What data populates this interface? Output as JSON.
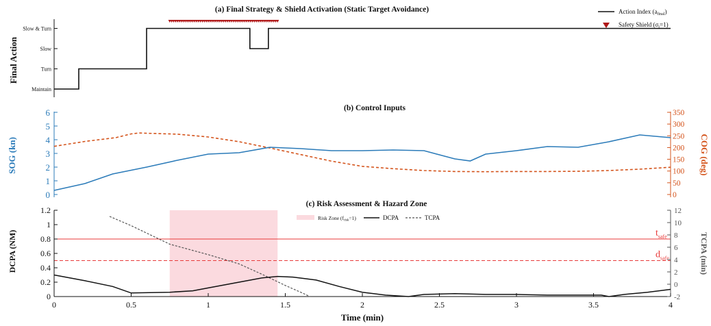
{
  "colors": {
    "black": "#111111",
    "sog": "#2b7bb9",
    "cog": "#d4541c",
    "shield": "#b01818",
    "risk_zone": "#fbdadf",
    "threshold": "#e83a3a",
    "tcpa": "#555555",
    "axis_gray": "#555555"
  },
  "chart_data": [
    {
      "id": "panel_a",
      "type": "line",
      "step": true,
      "title": "(a)  Final Strategy & Shield Activation (Static Target Avoidance)",
      "ylabel": "Final Action",
      "xlim": [
        0,
        4
      ],
      "ylim": [
        0.9,
        4.05
      ],
      "yticks": [
        1,
        2,
        3,
        4
      ],
      "ytick_labels": [
        "Maintain",
        "Turn",
        "Slow",
        "Slow & Turn"
      ],
      "series": [
        {
          "name": "Action Index (a_final)",
          "x": [
            0,
            0.16,
            0.16,
            0.6,
            0.6,
            1.27,
            1.27,
            1.39,
            1.39,
            4
          ],
          "y": [
            1,
            1,
            2,
            2,
            4,
            4,
            3,
            3,
            4,
            4
          ]
        },
        {
          "name": "Safety Shield (σ_t=1)",
          "marker": "triangle-down",
          "x_range": [
            0.75,
            1.45
          ],
          "y": 4.5
        }
      ],
      "legend": {
        "position": "top-right",
        "entries": [
          {
            "main": "Action Index (a",
            "sub": "final",
            "tail": ")"
          },
          {
            "main": "Safety Shield (σ",
            "sub": "t",
            "tail": "=1)"
          }
        ]
      }
    },
    {
      "id": "panel_b",
      "type": "line",
      "title": "(b)  Control Inputs",
      "xlim": [
        0,
        4
      ],
      "ylabel_left": "SOG (kn)",
      "ylabel_right": "COG (deg)",
      "ylim_left": [
        0,
        6
      ],
      "ylim_right": [
        0,
        350
      ],
      "yticks_left": [
        0,
        1,
        2,
        3,
        4,
        5,
        6
      ],
      "yticks_right": [
        0,
        50,
        100,
        150,
        200,
        250,
        300,
        350
      ],
      "series": [
        {
          "name": "SOG",
          "axis": "left",
          "x": [
            0,
            0.2,
            0.38,
            0.6,
            0.8,
            1.0,
            1.2,
            1.4,
            1.6,
            1.8,
            2.0,
            2.2,
            2.4,
            2.6,
            2.7,
            2.8,
            3.0,
            3.2,
            3.4,
            3.6,
            3.8,
            4.0
          ],
          "y": [
            0.3,
            0.8,
            1.5,
            2.0,
            2.5,
            2.95,
            3.05,
            3.45,
            3.35,
            3.2,
            3.2,
            3.25,
            3.2,
            2.6,
            2.45,
            2.95,
            3.2,
            3.5,
            3.45,
            3.85,
            4.35,
            4.15
          ]
        },
        {
          "name": "COG",
          "axis": "right",
          "style": "dashed",
          "x": [
            0,
            0.2,
            0.4,
            0.5,
            0.55,
            0.8,
            1.0,
            1.2,
            1.4,
            1.6,
            1.8,
            2.0,
            2.2,
            2.4,
            2.6,
            2.8,
            3.0,
            3.2,
            3.4,
            3.6,
            3.8,
            4.0
          ],
          "y": [
            205,
            226,
            242,
            258,
            262,
            257,
            245,
            225,
            198,
            170,
            142,
            120,
            110,
            102,
            98,
            97,
            98,
            98,
            99,
            102,
            108,
            116
          ]
        }
      ]
    },
    {
      "id": "panel_c",
      "type": "line",
      "title": "(c)  Risk Assessment & Hazard Zone",
      "xlabel": "Time (min)",
      "ylabel_left": "DCPA (NM)",
      "ylabel_right": "TCPA (min)",
      "xlim": [
        0,
        4
      ],
      "xticks": [
        0,
        0.5,
        1,
        1.5,
        2,
        2.5,
        3,
        3.5,
        4
      ],
      "ylim_left": [
        0,
        1.2
      ],
      "ylim_right": [
        -2,
        12
      ],
      "yticks_left": [
        0,
        0.2,
        0.4,
        0.6,
        0.8,
        1,
        1.2
      ],
      "yticks_right": [
        -2,
        0,
        2,
        4,
        6,
        8,
        10,
        12
      ],
      "risk_zone": {
        "x0": 0.75,
        "x1": 1.45
      },
      "thresholds": [
        {
          "name": "t_safe",
          "main": "t",
          "sub": "safe",
          "y": 0.8,
          "style": "solid"
        },
        {
          "name": "d_safe",
          "main": "d",
          "sub": "safe",
          "y": 0.5,
          "style": "dashed"
        }
      ],
      "series": [
        {
          "name": "DCPA",
          "axis": "left",
          "x": [
            0,
            0.2,
            0.38,
            0.5,
            0.75,
            0.9,
            1.0,
            1.2,
            1.35,
            1.45,
            1.55,
            1.7,
            1.85,
            2.0,
            2.15,
            2.3,
            2.4,
            2.6,
            2.8,
            3.0,
            3.2,
            3.4,
            3.55,
            3.6,
            3.7,
            3.85,
            4.0
          ],
          "y": [
            0.3,
            0.22,
            0.14,
            0.05,
            0.06,
            0.08,
            0.12,
            0.2,
            0.26,
            0.28,
            0.27,
            0.23,
            0.14,
            0.06,
            0.02,
            0.0,
            0.03,
            0.04,
            0.03,
            0.03,
            0.02,
            0.02,
            0.02,
            0.0,
            0.03,
            0.06,
            0.1
          ]
        },
        {
          "name": "TCPA",
          "axis": "right",
          "style": "dashed",
          "x": [
            0.36,
            0.5,
            0.75,
            1.0,
            1.2,
            1.35,
            1.5,
            1.6,
            1.66
          ],
          "y": [
            11.0,
            9.5,
            6.5,
            4.8,
            3.3,
            1.6,
            -0.2,
            -1.3,
            -2.0
          ]
        }
      ],
      "legend": {
        "position": "top-center",
        "entries": [
          {
            "main": "Risk Zone (f",
            "sub": "risk",
            "tail": "=1)"
          },
          {
            "main": "DCPA"
          },
          {
            "main": "TCPA"
          }
        ]
      }
    }
  ]
}
